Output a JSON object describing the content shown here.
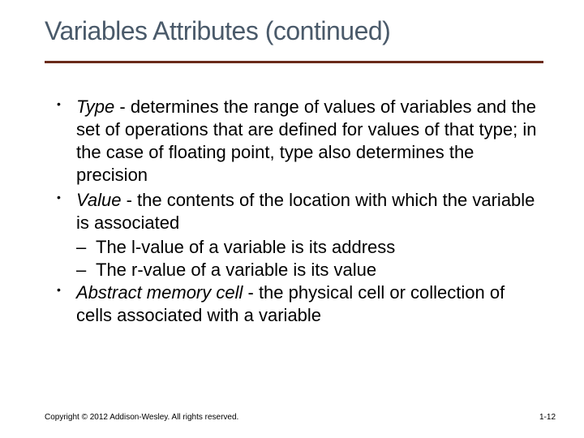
{
  "title": "Variables Attributes (continued)",
  "title_color": "#4a5a6a",
  "rule_color": "#6a2b1a",
  "rule_thickness": 3,
  "bullets": [
    {
      "term": "Type",
      "text": " - determines the range of values of variables and the set of operations that are defined for values of that type; in the case of floating point, type also determines the precision",
      "subs": []
    },
    {
      "term": "Value",
      "text": " - the contents of the location with which the variable is associated",
      "subs": [
        "The l-value of a variable is its address",
        "The r-value of a variable is its value"
      ]
    },
    {
      "term": "Abstract memory cell",
      "text": " - the physical cell or collection of cells associated with a variable",
      "subs": []
    }
  ],
  "footer": "Copyright © 2012 Addison-Wesley. All rights reserved.",
  "pagenum": "1-12",
  "background_color": "#ffffff",
  "body_color": "#000000"
}
